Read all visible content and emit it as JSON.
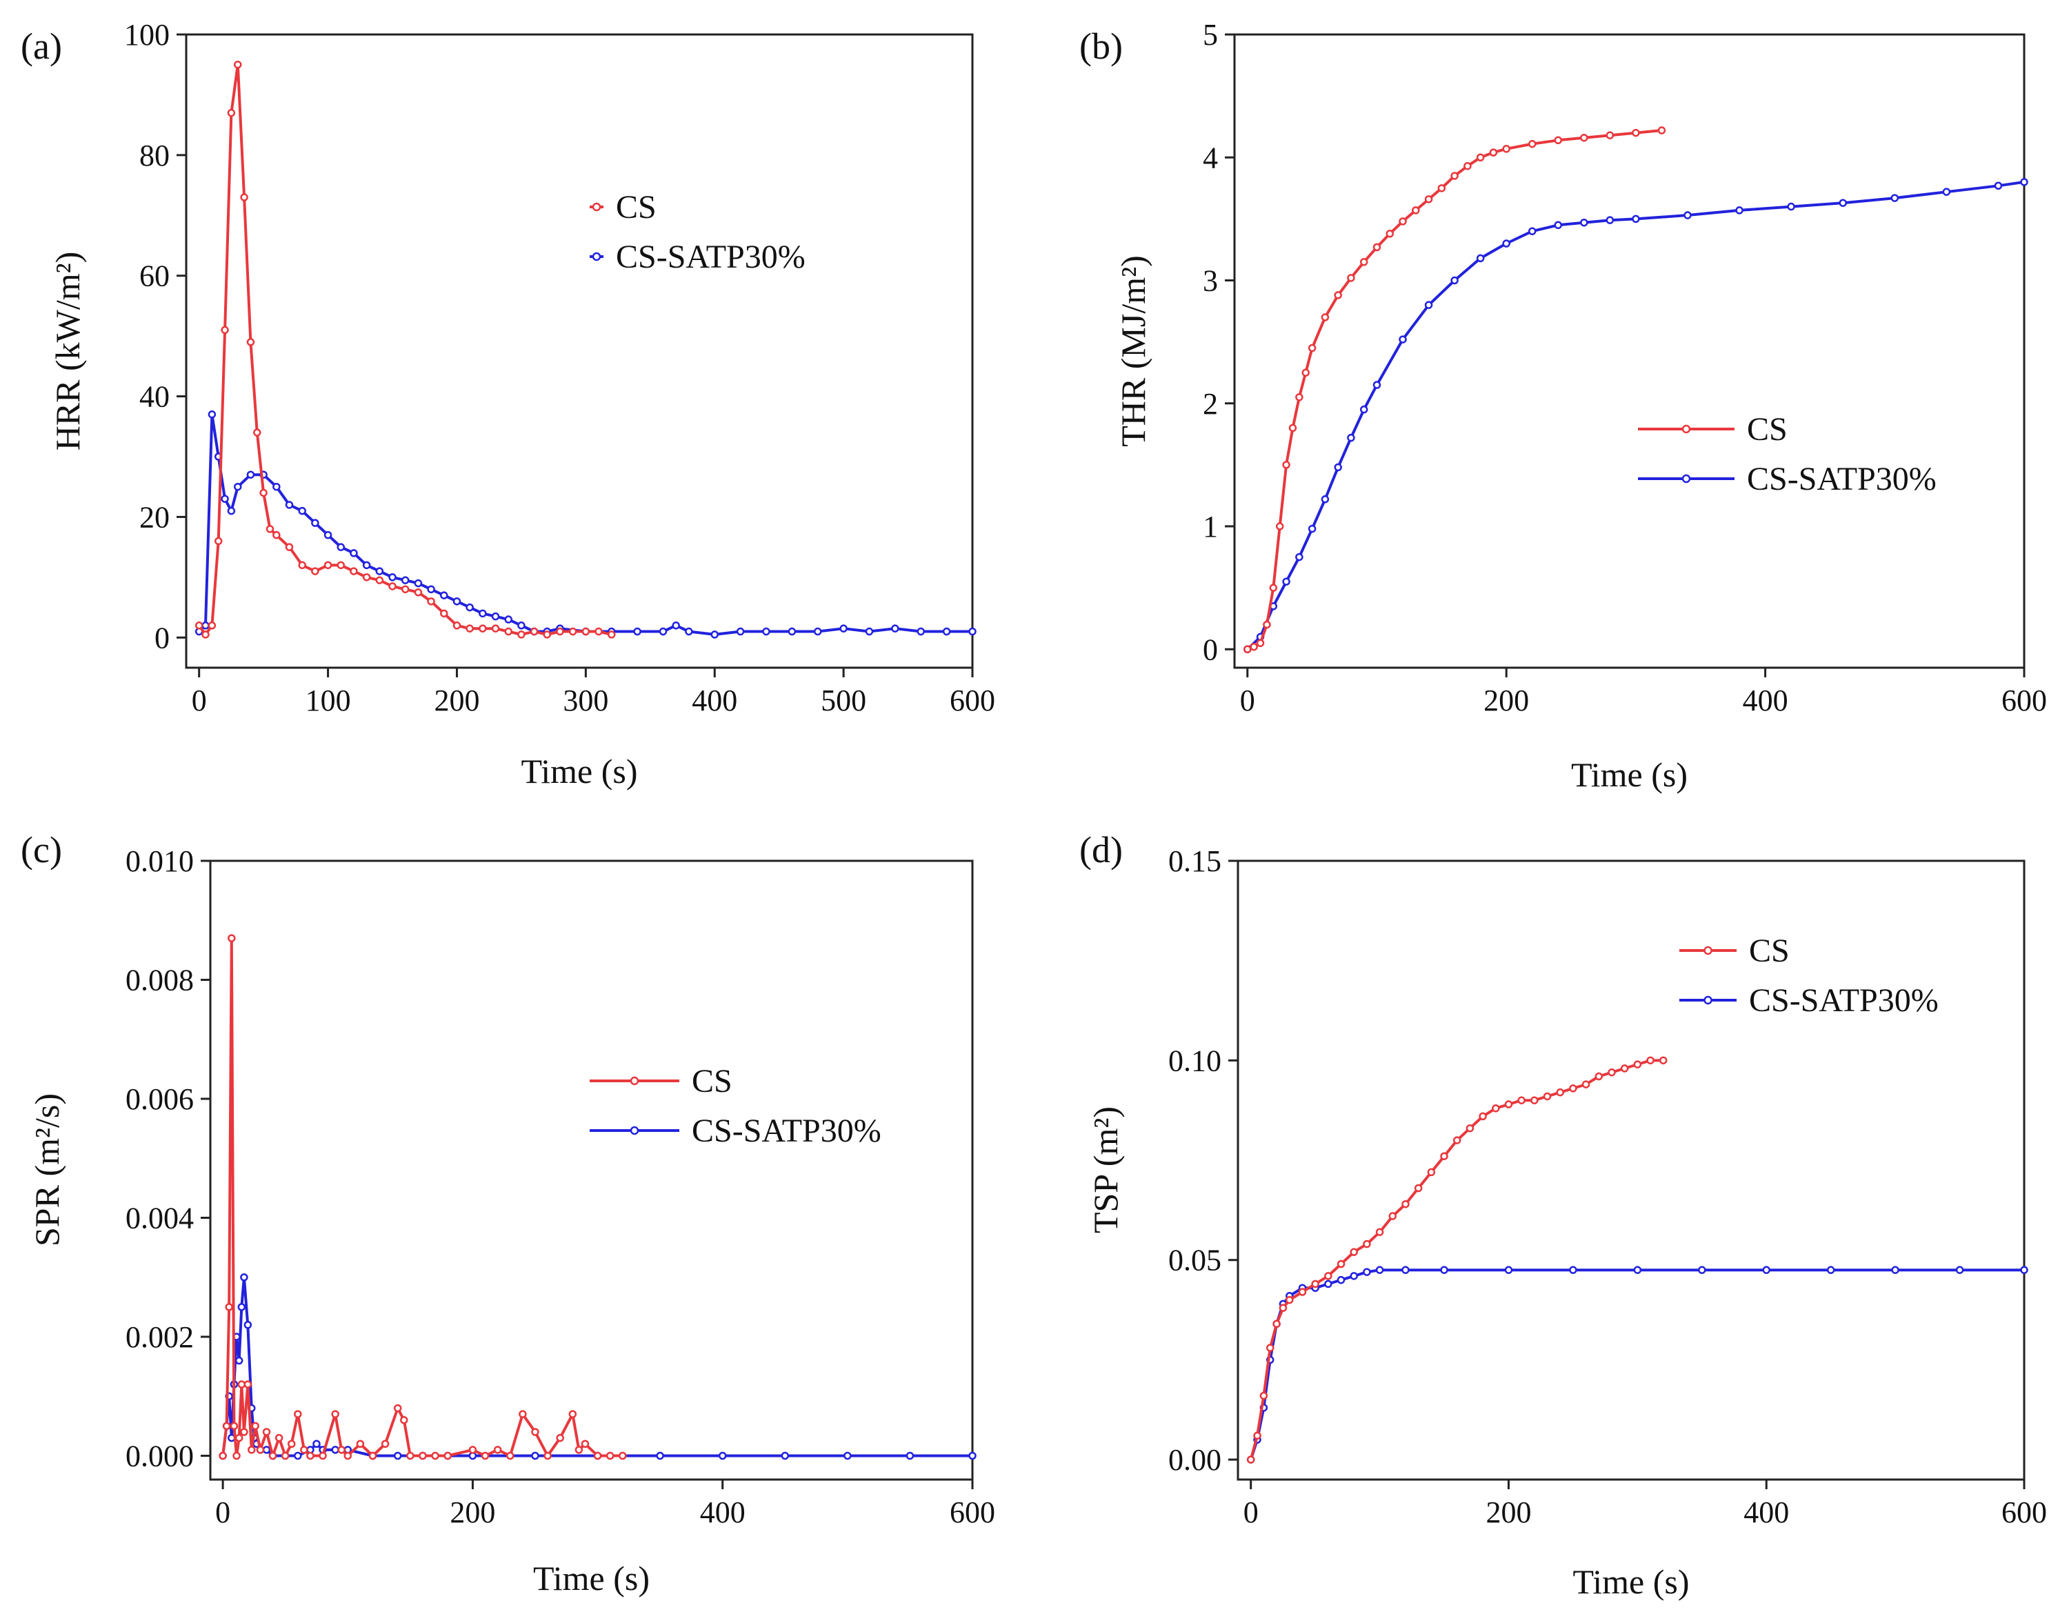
{
  "chart_data": [
    {
      "type": "line",
      "panel_label": "(a)",
      "ylabel": "HRR (kW/m²)",
      "xlabel": "Time (s)",
      "xlim": [
        -10,
        600
      ],
      "ylim": [
        -5,
        100
      ],
      "xticks": [
        "0",
        "100",
        "200",
        "300",
        "400",
        "500",
        "600"
      ],
      "yticks": [
        "0",
        "20",
        "40",
        "60",
        "80",
        "100"
      ],
      "legend": [
        "CS",
        "CS-SATP30%"
      ],
      "series": [
        {
          "name": "CS",
          "color": "#e8383d",
          "x": [
            0,
            5,
            10,
            15,
            20,
            25,
            30,
            35,
            40,
            45,
            50,
            55,
            60,
            70,
            80,
            90,
            100,
            110,
            120,
            130,
            140,
            150,
            160,
            170,
            180,
            190,
            200,
            210,
            220,
            230,
            240,
            250,
            260,
            270,
            280,
            290,
            300,
            310,
            320
          ],
          "y": [
            2,
            0.5,
            2,
            16,
            51,
            87,
            95,
            73,
            49,
            34,
            24,
            18,
            17,
            15,
            12,
            11,
            12,
            12,
            11,
            10,
            9.5,
            8.5,
            8,
            7.5,
            6,
            4,
            2,
            1.5,
            1.5,
            1.5,
            1,
            0.5,
            1,
            0.5,
            1,
            1,
            1,
            1,
            0.5
          ]
        },
        {
          "name": "CS-SATP30%",
          "color": "#2222dd",
          "x": [
            0,
            5,
            10,
            15,
            20,
            25,
            30,
            40,
            50,
            60,
            70,
            80,
            90,
            100,
            110,
            120,
            130,
            140,
            150,
            160,
            170,
            180,
            190,
            200,
            210,
            220,
            230,
            240,
            250,
            260,
            270,
            280,
            300,
            320,
            340,
            360,
            370,
            380,
            400,
            420,
            440,
            460,
            480,
            500,
            520,
            540,
            560,
            580,
            600
          ],
          "y": [
            1,
            2,
            37,
            30,
            23,
            21,
            25,
            27,
            27,
            25,
            22,
            21,
            19,
            17,
            15,
            14,
            12,
            11,
            10,
            9.5,
            9,
            8,
            7,
            6,
            5,
            4,
            3.5,
            3,
            2,
            1,
            1,
            1.5,
            1,
            1,
            1,
            1,
            2,
            1,
            0.5,
            1,
            1,
            1,
            1,
            1.5,
            1,
            1.5,
            1,
            1,
            1
          ]
        }
      ]
    },
    {
      "type": "line",
      "panel_label": "(b)",
      "ylabel": "THR (MJ/m²)",
      "xlabel": "Time (s)",
      "xlim": [
        -10,
        600
      ],
      "ylim": [
        -0.15,
        5
      ],
      "xticks": [
        "0",
        "200",
        "400",
        "600"
      ],
      "yticks": [
        "0",
        "1",
        "2",
        "3",
        "4",
        "5"
      ],
      "legend": [
        "CS",
        "CS-SATP30%"
      ],
      "series": [
        {
          "name": "CS",
          "color": "#e8383d",
          "x": [
            0,
            5,
            10,
            15,
            20,
            25,
            30,
            35,
            40,
            45,
            50,
            60,
            70,
            80,
            90,
            100,
            110,
            120,
            130,
            140,
            150,
            160,
            170,
            180,
            190,
            200,
            220,
            240,
            260,
            280,
            300,
            320
          ],
          "y": [
            0,
            0.02,
            0.05,
            0.2,
            0.5,
            1.0,
            1.5,
            1.8,
            2.05,
            2.25,
            2.45,
            2.7,
            2.88,
            3.02,
            3.15,
            3.27,
            3.38,
            3.48,
            3.57,
            3.66,
            3.75,
            3.85,
            3.93,
            4.0,
            4.04,
            4.07,
            4.11,
            4.14,
            4.16,
            4.18,
            4.2,
            4.22
          ]
        },
        {
          "name": "CS-SATP30%",
          "color": "#2222dd",
          "x": [
            0,
            10,
            20,
            30,
            40,
            50,
            60,
            70,
            80,
            90,
            100,
            120,
            140,
            160,
            180,
            200,
            220,
            240,
            260,
            280,
            300,
            340,
            380,
            420,
            460,
            500,
            540,
            580,
            600
          ],
          "y": [
            0,
            0.1,
            0.35,
            0.55,
            0.75,
            0.98,
            1.22,
            1.48,
            1.72,
            1.95,
            2.15,
            2.52,
            2.8,
            3.0,
            3.18,
            3.3,
            3.4,
            3.45,
            3.47,
            3.49,
            3.5,
            3.53,
            3.57,
            3.6,
            3.63,
            3.67,
            3.72,
            3.77,
            3.8
          ]
        }
      ]
    },
    {
      "type": "line",
      "panel_label": "(c)",
      "ylabel": "SPR (m²/s)",
      "xlabel": "Time (s)",
      "xlim": [
        -10,
        600
      ],
      "ylim": [
        -0.0004,
        0.01
      ],
      "xticks": [
        "0",
        "200",
        "400",
        "600"
      ],
      "yticks": [
        "0.000",
        "0.002",
        "0.004",
        "0.006",
        "0.008",
        "0.010"
      ],
      "legend": [
        "CS",
        "CS-SATP30%"
      ],
      "series": [
        {
          "name": "CS",
          "color": "#e8383d",
          "x": [
            0,
            3,
            5,
            7,
            9,
            11,
            13,
            15,
            17,
            20,
            23,
            26,
            30,
            35,
            40,
            45,
            50,
            55,
            60,
            65,
            70,
            80,
            90,
            95,
            100,
            110,
            120,
            130,
            140,
            145,
            150,
            160,
            170,
            180,
            200,
            210,
            220,
            230,
            240,
            250,
            260,
            270,
            280,
            285,
            290,
            300,
            310,
            320
          ],
          "y": [
            0,
            0.0005,
            0.0025,
            0.0087,
            0.0005,
            0,
            0.0003,
            0.0012,
            0.0004,
            0.0012,
            0.0001,
            0.0005,
            0.0001,
            0.0004,
            0,
            0.0003,
            0,
            0.0002,
            0.0007,
            0.0001,
            0,
            0,
            0.0007,
            0.0001,
            0,
            0.0002,
            0,
            0.0002,
            0.0008,
            0.0006,
            0,
            0,
            0,
            0,
            0.0001,
            0,
            0.0001,
            0,
            0.0007,
            0.0004,
            0,
            0.0003,
            0.0007,
            0.0001,
            0.0002,
            0,
            0,
            0
          ]
        },
        {
          "name": "CS-SATP30%",
          "color": "#2222dd",
          "x": [
            0,
            3,
            5,
            7,
            9,
            11,
            13,
            15,
            17,
            20,
            23,
            25,
            27,
            30,
            35,
            40,
            50,
            60,
            70,
            75,
            80,
            90,
            100,
            120,
            140,
            160,
            180,
            200,
            250,
            300,
            350,
            400,
            450,
            500,
            550,
            600
          ],
          "y": [
            0,
            0.0005,
            0.001,
            0.0003,
            0.0012,
            0.002,
            0.0016,
            0.0025,
            0.003,
            0.0022,
            0.0008,
            0.0003,
            0.0002,
            0.0001,
            0.0001,
            0,
            0,
            0,
            0.0001,
            0.0002,
            0.0001,
            0.0001,
            0.0001,
            0,
            0,
            0,
            0,
            0,
            0,
            0,
            0,
            0,
            0,
            0,
            0,
            0
          ]
        }
      ]
    },
    {
      "type": "line",
      "panel_label": "(d)",
      "ylabel": "TSP (m²)",
      "xlabel": "Time (s)",
      "xlim": [
        -10,
        600
      ],
      "ylim": [
        -0.005,
        0.15
      ],
      "xticks": [
        "0",
        "200",
        "400",
        "600"
      ],
      "yticks": [
        "0.00",
        "0.05",
        "0.10",
        "0.15"
      ],
      "legend": [
        "CS",
        "CS-SATP30%"
      ],
      "series": [
        {
          "name": "CS",
          "color": "#e8383d",
          "x": [
            0,
            5,
            10,
            15,
            20,
            25,
            30,
            40,
            50,
            60,
            70,
            80,
            90,
            100,
            110,
            120,
            130,
            140,
            150,
            160,
            170,
            180,
            190,
            200,
            210,
            220,
            230,
            240,
            250,
            260,
            270,
            280,
            290,
            300,
            310,
            320
          ],
          "y": [
            0,
            0.006,
            0.016,
            0.028,
            0.034,
            0.038,
            0.04,
            0.042,
            0.044,
            0.046,
            0.049,
            0.052,
            0.054,
            0.057,
            0.061,
            0.064,
            0.068,
            0.072,
            0.076,
            0.08,
            0.083,
            0.086,
            0.088,
            0.089,
            0.09,
            0.09,
            0.091,
            0.092,
            0.093,
            0.094,
            0.096,
            0.097,
            0.098,
            0.099,
            0.1,
            0.1
          ]
        },
        {
          "name": "CS-SATP30%",
          "color": "#2222dd",
          "x": [
            0,
            5,
            10,
            15,
            20,
            25,
            30,
            40,
            50,
            60,
            70,
            80,
            90,
            100,
            120,
            150,
            200,
            250,
            300,
            350,
            400,
            450,
            500,
            550,
            600
          ],
          "y": [
            0,
            0.005,
            0.013,
            0.025,
            0.034,
            0.039,
            0.041,
            0.043,
            0.043,
            0.044,
            0.045,
            0.046,
            0.047,
            0.0475,
            0.0475,
            0.0475,
            0.0475,
            0.0475,
            0.0475,
            0.0475,
            0.0475,
            0.0475,
            0.0475,
            0.0475,
            0.0475
          ]
        }
      ]
    }
  ]
}
